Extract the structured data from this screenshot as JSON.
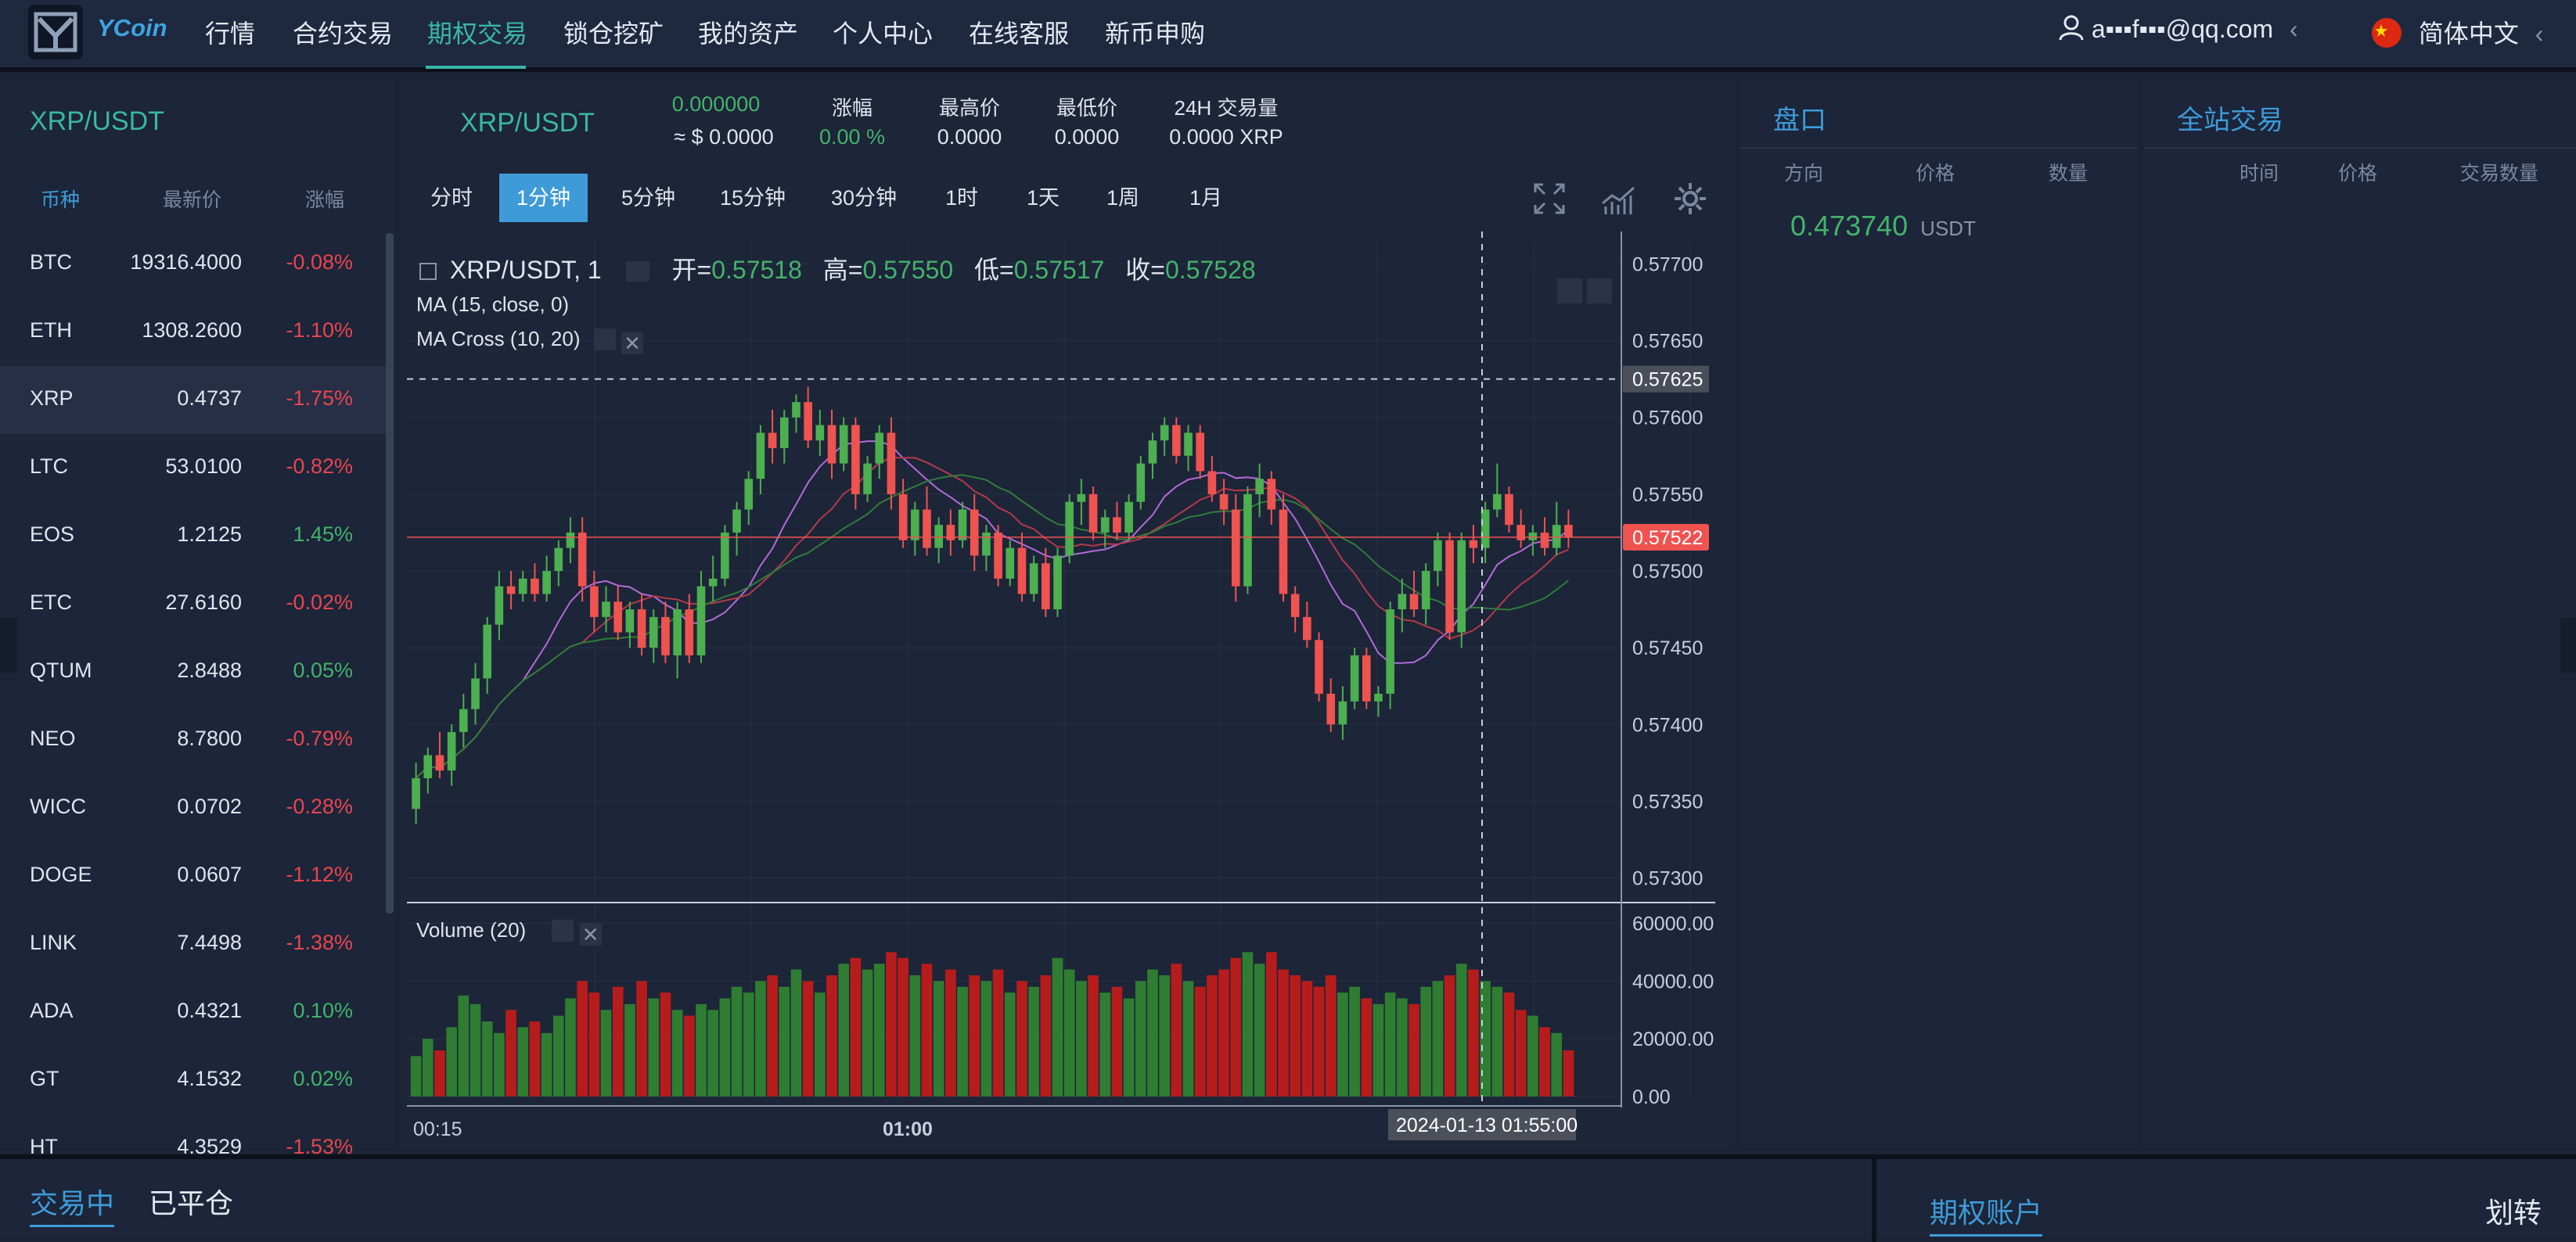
{
  "nav": {
    "logo_text": "YCoin",
    "items": [
      "行情",
      "合约交易",
      "期权交易",
      "锁仓挖矿",
      "我的资产",
      "个人中心",
      "在线客服",
      "新币申购"
    ],
    "active_index": 2,
    "user_email": "a▪▪▪f▪▪▪@qq.com",
    "language": "简体中文",
    "chevron": "‹"
  },
  "market": {
    "pair": "XRP/USDT",
    "headers": {
      "coin": "币种",
      "price": "最新价",
      "change": "涨幅"
    },
    "rows": [
      {
        "coin": "BTC",
        "price": "19316.4000",
        "change": "-0.08%"
      },
      {
        "coin": "ETH",
        "price": "1308.2600",
        "change": "-1.10%"
      },
      {
        "coin": "XRP",
        "price": "0.4737",
        "change": "-1.75%"
      },
      {
        "coin": "LTC",
        "price": "53.0100",
        "change": "-0.82%"
      },
      {
        "coin": "EOS",
        "price": "1.2125",
        "change": "1.45%"
      },
      {
        "coin": "ETC",
        "price": "27.6160",
        "change": "-0.02%"
      },
      {
        "coin": "QTUM",
        "price": "2.8488",
        "change": "0.05%"
      },
      {
        "coin": "NEO",
        "price": "8.7800",
        "change": "-0.79%"
      },
      {
        "coin": "WICC",
        "price": "0.0702",
        "change": "-0.28%"
      },
      {
        "coin": "DOGE",
        "price": "0.0607",
        "change": "-1.12%"
      },
      {
        "coin": "LINK",
        "price": "7.4498",
        "change": "-1.38%"
      },
      {
        "coin": "ADA",
        "price": "0.4321",
        "change": "0.10%"
      },
      {
        "coin": "GT",
        "price": "4.1532",
        "change": "0.02%"
      },
      {
        "coin": "HT",
        "price": "4.3529",
        "change": "-1.53%"
      }
    ],
    "selected_coin": "XRP"
  },
  "ticker": {
    "pair": "XRP/USDT",
    "last_price": "0.000000",
    "usd_value": "≈ $ 0.0000",
    "change_label": "涨幅",
    "change_value": "0.00 %",
    "high_label": "最高价",
    "high_value": "0.0000",
    "low_label": "最低价",
    "low_value": "0.0000",
    "volume_label": "24H 交易量",
    "volume_value": "0.0000 XRP"
  },
  "timeframes": [
    "分时",
    "1分钟",
    "5分钟",
    "15分钟",
    "30分钟",
    "1时",
    "1天",
    "1周",
    "1月"
  ],
  "timeframe_active": "1分钟",
  "chart_toolbar_icons": [
    "fullscreen-icon",
    "indicators-icon",
    "settings-icon"
  ],
  "chart_legend": {
    "symbol": "XRP/USDT, 1",
    "open_label": "开=",
    "open": "0.57518",
    "high_label": "高=",
    "high": "0.57550",
    "low_label": "低=",
    "low": "0.57517",
    "close_label": "收=",
    "close": "0.57528",
    "study1": "MA (15, close, 0)",
    "study2": "MA Cross (10, 20)",
    "volume_study": "Volume (20)"
  },
  "chart_data": {
    "type": "candlestick",
    "price_ticks": [
      "0.57700",
      "0.57650",
      "0.57600",
      "0.57550",
      "0.57500",
      "0.57450",
      "0.57400",
      "0.57350",
      "0.57300"
    ],
    "price_ylim": [
      0.57285,
      0.57715
    ],
    "crosshair_price": "0.57625",
    "last_price_label": "0.57522",
    "volume_ticks": [
      "60000.00",
      "40000.00",
      "20000.00",
      "0.00"
    ],
    "volume_ylim": [
      0,
      60000
    ],
    "time_ticks": [
      "00:15",
      "01:00"
    ],
    "crosshair_time": "2024-01-13 01:55:00",
    "colors": {
      "up": "#4caf50",
      "down": "#ef5350",
      "vol_up": "#2e7d32",
      "vol_down": "#b71c1c"
    },
    "candles": [
      {
        "o": 0.57345,
        "h": 0.57375,
        "l": 0.57335,
        "c": 0.57365,
        "v": 14000
      },
      {
        "o": 0.57365,
        "h": 0.57385,
        "l": 0.57355,
        "c": 0.5738,
        "v": 20000
      },
      {
        "o": 0.5738,
        "h": 0.57395,
        "l": 0.57365,
        "c": 0.5737,
        "v": 16000
      },
      {
        "o": 0.5737,
        "h": 0.574,
        "l": 0.5736,
        "c": 0.57395,
        "v": 24000
      },
      {
        "o": 0.57395,
        "h": 0.5742,
        "l": 0.57385,
        "c": 0.5741,
        "v": 35000
      },
      {
        "o": 0.5741,
        "h": 0.5744,
        "l": 0.574,
        "c": 0.5743,
        "v": 32000
      },
      {
        "o": 0.5743,
        "h": 0.5747,
        "l": 0.5742,
        "c": 0.57465,
        "v": 26000
      },
      {
        "o": 0.57465,
        "h": 0.575,
        "l": 0.57455,
        "c": 0.5749,
        "v": 22000
      },
      {
        "o": 0.5749,
        "h": 0.575,
        "l": 0.57475,
        "c": 0.57485,
        "v": 30000
      },
      {
        "o": 0.57485,
        "h": 0.575,
        "l": 0.5748,
        "c": 0.57495,
        "v": 24000
      },
      {
        "o": 0.57495,
        "h": 0.57505,
        "l": 0.5748,
        "c": 0.57485,
        "v": 26000
      },
      {
        "o": 0.57485,
        "h": 0.5751,
        "l": 0.5748,
        "c": 0.575,
        "v": 22000
      },
      {
        "o": 0.575,
        "h": 0.5752,
        "l": 0.5749,
        "c": 0.57515,
        "v": 28000
      },
      {
        "o": 0.57515,
        "h": 0.57535,
        "l": 0.57505,
        "c": 0.57525,
        "v": 34000
      },
      {
        "o": 0.57525,
        "h": 0.57535,
        "l": 0.5748,
        "c": 0.5749,
        "v": 40000
      },
      {
        "o": 0.5749,
        "h": 0.575,
        "l": 0.5746,
        "c": 0.5747,
        "v": 36000
      },
      {
        "o": 0.5747,
        "h": 0.5749,
        "l": 0.5746,
        "c": 0.5748,
        "v": 30000
      },
      {
        "o": 0.5748,
        "h": 0.5749,
        "l": 0.57455,
        "c": 0.5746,
        "v": 38000
      },
      {
        "o": 0.5746,
        "h": 0.5748,
        "l": 0.5745,
        "c": 0.57475,
        "v": 32000
      },
      {
        "o": 0.57475,
        "h": 0.57485,
        "l": 0.57445,
        "c": 0.5745,
        "v": 40000
      },
      {
        "o": 0.5745,
        "h": 0.57475,
        "l": 0.5744,
        "c": 0.5747,
        "v": 34000
      },
      {
        "o": 0.5747,
        "h": 0.5748,
        "l": 0.5744,
        "c": 0.57445,
        "v": 36000
      },
      {
        "o": 0.57445,
        "h": 0.5748,
        "l": 0.5743,
        "c": 0.57475,
        "v": 30000
      },
      {
        "o": 0.57475,
        "h": 0.57485,
        "l": 0.5744,
        "c": 0.57445,
        "v": 28000
      },
      {
        "o": 0.57445,
        "h": 0.575,
        "l": 0.5744,
        "c": 0.5749,
        "v": 32000
      },
      {
        "o": 0.5749,
        "h": 0.5751,
        "l": 0.5748,
        "c": 0.57495,
        "v": 30000
      },
      {
        "o": 0.57495,
        "h": 0.5753,
        "l": 0.5749,
        "c": 0.57525,
        "v": 34000
      },
      {
        "o": 0.57525,
        "h": 0.57545,
        "l": 0.5751,
        "c": 0.5754,
        "v": 38000
      },
      {
        "o": 0.5754,
        "h": 0.57565,
        "l": 0.5753,
        "c": 0.5756,
        "v": 36000
      },
      {
        "o": 0.5756,
        "h": 0.57595,
        "l": 0.5755,
        "c": 0.5759,
        "v": 40000
      },
      {
        "o": 0.5759,
        "h": 0.57605,
        "l": 0.5757,
        "c": 0.5758,
        "v": 42000
      },
      {
        "o": 0.5758,
        "h": 0.57605,
        "l": 0.5757,
        "c": 0.576,
        "v": 38000
      },
      {
        "o": 0.576,
        "h": 0.57615,
        "l": 0.5759,
        "c": 0.5761,
        "v": 44000
      },
      {
        "o": 0.5761,
        "h": 0.5762,
        "l": 0.5758,
        "c": 0.57585,
        "v": 40000
      },
      {
        "o": 0.57585,
        "h": 0.57605,
        "l": 0.57575,
        "c": 0.57595,
        "v": 36000
      },
      {
        "o": 0.57595,
        "h": 0.57605,
        "l": 0.5756,
        "c": 0.5757,
        "v": 42000
      },
      {
        "o": 0.5757,
        "h": 0.576,
        "l": 0.57565,
        "c": 0.57595,
        "v": 46000
      },
      {
        "o": 0.57595,
        "h": 0.576,
        "l": 0.5754,
        "c": 0.5755,
        "v": 48000
      },
      {
        "o": 0.5755,
        "h": 0.57575,
        "l": 0.57545,
        "c": 0.5757,
        "v": 44000
      },
      {
        "o": 0.5757,
        "h": 0.57595,
        "l": 0.5756,
        "c": 0.5759,
        "v": 46000
      },
      {
        "o": 0.5759,
        "h": 0.576,
        "l": 0.5754,
        "c": 0.5755,
        "v": 50000
      },
      {
        "o": 0.5755,
        "h": 0.5756,
        "l": 0.57515,
        "c": 0.5752,
        "v": 48000
      },
      {
        "o": 0.5752,
        "h": 0.57545,
        "l": 0.5751,
        "c": 0.5754,
        "v": 42000
      },
      {
        "o": 0.5754,
        "h": 0.57555,
        "l": 0.5751,
        "c": 0.57515,
        "v": 46000
      },
      {
        "o": 0.57515,
        "h": 0.57535,
        "l": 0.57505,
        "c": 0.5753,
        "v": 40000
      },
      {
        "o": 0.5753,
        "h": 0.5754,
        "l": 0.5751,
        "c": 0.5752,
        "v": 44000
      },
      {
        "o": 0.5752,
        "h": 0.57545,
        "l": 0.57515,
        "c": 0.5754,
        "v": 38000
      },
      {
        "o": 0.5754,
        "h": 0.5755,
        "l": 0.575,
        "c": 0.5751,
        "v": 42000
      },
      {
        "o": 0.5751,
        "h": 0.5753,
        "l": 0.575,
        "c": 0.57525,
        "v": 40000
      },
      {
        "o": 0.57525,
        "h": 0.5753,
        "l": 0.5749,
        "c": 0.57495,
        "v": 44000
      },
      {
        "o": 0.57495,
        "h": 0.5752,
        "l": 0.5749,
        "c": 0.57515,
        "v": 36000
      },
      {
        "o": 0.57515,
        "h": 0.57525,
        "l": 0.5748,
        "c": 0.57485,
        "v": 40000
      },
      {
        "o": 0.57485,
        "h": 0.5751,
        "l": 0.5748,
        "c": 0.57505,
        "v": 38000
      },
      {
        "o": 0.57505,
        "h": 0.57515,
        "l": 0.5747,
        "c": 0.57475,
        "v": 42000
      },
      {
        "o": 0.57475,
        "h": 0.57515,
        "l": 0.5747,
        "c": 0.5751,
        "v": 48000
      },
      {
        "o": 0.5751,
        "h": 0.5755,
        "l": 0.57505,
        "c": 0.57545,
        "v": 44000
      },
      {
        "o": 0.57545,
        "h": 0.5756,
        "l": 0.5753,
        "c": 0.5755,
        "v": 40000
      },
      {
        "o": 0.5755,
        "h": 0.57555,
        "l": 0.5752,
        "c": 0.57525,
        "v": 42000
      },
      {
        "o": 0.57525,
        "h": 0.5754,
        "l": 0.57515,
        "c": 0.57535,
        "v": 36000
      },
      {
        "o": 0.57535,
        "h": 0.57545,
        "l": 0.5752,
        "c": 0.57525,
        "v": 38000
      },
      {
        "o": 0.57525,
        "h": 0.5755,
        "l": 0.5752,
        "c": 0.57545,
        "v": 34000
      },
      {
        "o": 0.57545,
        "h": 0.57575,
        "l": 0.5754,
        "c": 0.5757,
        "v": 40000
      },
      {
        "o": 0.5757,
        "h": 0.5759,
        "l": 0.5756,
        "c": 0.57585,
        "v": 44000
      },
      {
        "o": 0.57585,
        "h": 0.576,
        "l": 0.57575,
        "c": 0.57595,
        "v": 42000
      },
      {
        "o": 0.57595,
        "h": 0.576,
        "l": 0.5757,
        "c": 0.57575,
        "v": 46000
      },
      {
        "o": 0.57575,
        "h": 0.57595,
        "l": 0.57565,
        "c": 0.5759,
        "v": 40000
      },
      {
        "o": 0.5759,
        "h": 0.57595,
        "l": 0.5756,
        "c": 0.57565,
        "v": 38000
      },
      {
        "o": 0.57565,
        "h": 0.57575,
        "l": 0.57545,
        "c": 0.5755,
        "v": 42000
      },
      {
        "o": 0.5755,
        "h": 0.5756,
        "l": 0.5753,
        "c": 0.5754,
        "v": 44000
      },
      {
        "o": 0.5754,
        "h": 0.5755,
        "l": 0.5748,
        "c": 0.5749,
        "v": 48000
      },
      {
        "o": 0.5749,
        "h": 0.57555,
        "l": 0.57485,
        "c": 0.5755,
        "v": 50000
      },
      {
        "o": 0.5755,
        "h": 0.5757,
        "l": 0.57535,
        "c": 0.5756,
        "v": 46000
      },
      {
        "o": 0.5756,
        "h": 0.57565,
        "l": 0.5753,
        "c": 0.5754,
        "v": 50000
      },
      {
        "o": 0.5754,
        "h": 0.5755,
        "l": 0.5748,
        "c": 0.57485,
        "v": 44000
      },
      {
        "o": 0.57485,
        "h": 0.5749,
        "l": 0.5746,
        "c": 0.5747,
        "v": 42000
      },
      {
        "o": 0.5747,
        "h": 0.5748,
        "l": 0.5745,
        "c": 0.57455,
        "v": 40000
      },
      {
        "o": 0.57455,
        "h": 0.5746,
        "l": 0.57415,
        "c": 0.5742,
        "v": 38000
      },
      {
        "o": 0.5742,
        "h": 0.5743,
        "l": 0.57395,
        "c": 0.574,
        "v": 42000
      },
      {
        "o": 0.574,
        "h": 0.57425,
        "l": 0.5739,
        "c": 0.57415,
        "v": 36000
      },
      {
        "o": 0.57415,
        "h": 0.5745,
        "l": 0.5741,
        "c": 0.57445,
        "v": 38000
      },
      {
        "o": 0.57445,
        "h": 0.5745,
        "l": 0.5741,
        "c": 0.57415,
        "v": 34000
      },
      {
        "o": 0.57415,
        "h": 0.57425,
        "l": 0.57405,
        "c": 0.5742,
        "v": 32000
      },
      {
        "o": 0.5742,
        "h": 0.5748,
        "l": 0.5741,
        "c": 0.57475,
        "v": 36000
      },
      {
        "o": 0.57475,
        "h": 0.57495,
        "l": 0.5746,
        "c": 0.57485,
        "v": 34000
      },
      {
        "o": 0.57485,
        "h": 0.575,
        "l": 0.5747,
        "c": 0.57475,
        "v": 32000
      },
      {
        "o": 0.57475,
        "h": 0.57505,
        "l": 0.57465,
        "c": 0.575,
        "v": 38000
      },
      {
        "o": 0.575,
        "h": 0.57525,
        "l": 0.5749,
        "c": 0.5752,
        "v": 40000
      },
      {
        "o": 0.5752,
        "h": 0.57525,
        "l": 0.57455,
        "c": 0.5746,
        "v": 42000
      },
      {
        "o": 0.5746,
        "h": 0.57525,
        "l": 0.5745,
        "c": 0.5752,
        "v": 46000
      },
      {
        "o": 0.5752,
        "h": 0.5753,
        "l": 0.57505,
        "c": 0.57515,
        "v": 44000
      },
      {
        "o": 0.57515,
        "h": 0.57545,
        "l": 0.57505,
        "c": 0.5754,
        "v": 40000
      },
      {
        "o": 0.5754,
        "h": 0.5757,
        "l": 0.57535,
        "c": 0.5755,
        "v": 38000
      },
      {
        "o": 0.5755,
        "h": 0.57555,
        "l": 0.57525,
        "c": 0.5753,
        "v": 36000
      },
      {
        "o": 0.5753,
        "h": 0.5754,
        "l": 0.57515,
        "c": 0.5752,
        "v": 30000
      },
      {
        "o": 0.5752,
        "h": 0.5753,
        "l": 0.5751,
        "c": 0.57525,
        "v": 28000
      },
      {
        "o": 0.57525,
        "h": 0.57535,
        "l": 0.5751,
        "c": 0.57515,
        "v": 24000
      },
      {
        "o": 0.57515,
        "h": 0.57545,
        "l": 0.5751,
        "c": 0.5753,
        "v": 22000
      },
      {
        "o": 0.5753,
        "h": 0.5754,
        "l": 0.57515,
        "c": 0.57522,
        "v": 16000
      }
    ]
  },
  "orderbook": {
    "title": "盘口",
    "headers": [
      "方向",
      "价格",
      "数量"
    ],
    "mid_price": "0.473740",
    "mid_unit": "USDT"
  },
  "trades": {
    "title": "全站交易",
    "headers": [
      "时间",
      "价格",
      "交易数量"
    ]
  },
  "bottom": {
    "tab_active": "交易中",
    "tab_inactive": "已平仓",
    "account_label": "期权账户",
    "transfer_label": "划转"
  }
}
